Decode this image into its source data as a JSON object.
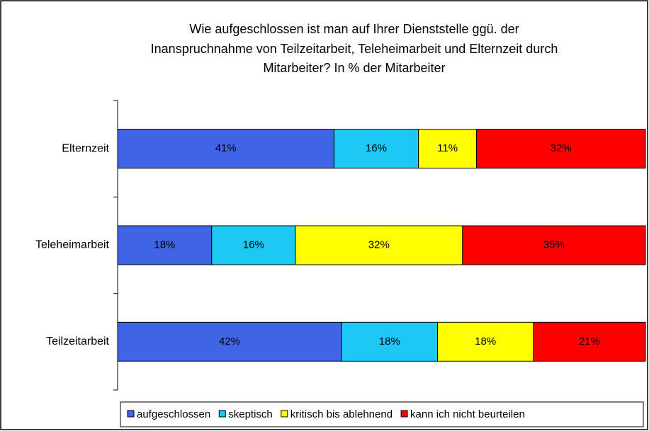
{
  "chart_data": {
    "type": "bar",
    "orientation": "horizontal",
    "stacked": "percent",
    "title": [
      "Wie aufgeschlossen ist man auf Ihrer Dienststelle ggü. der",
      "Inanspruchnahme von Teilzeitarbeit, Teleheimarbeit und Elternzeit durch",
      "Mitarbeiter? In % der Mitarbeiter"
    ],
    "categories": [
      "Elternzeit",
      "Teleheimarbeit",
      "Teilzeitarbeit"
    ],
    "series": [
      {
        "name": "aufgeschlossen",
        "color": "#3f64e6",
        "values": [
          41,
          18,
          42
        ],
        "value_labels": [
          "41%",
          "18%",
          "42%"
        ]
      },
      {
        "name": "skeptisch",
        "color": "#1ec8f5",
        "values": [
          16,
          16,
          18
        ],
        "value_labels": [
          "16%",
          "16%",
          "18%"
        ]
      },
      {
        "name": "kritisch bis ablehnend",
        "color": "#ffff00",
        "values": [
          11,
          32,
          18
        ],
        "value_labels": [
          "11%",
          "32%",
          "18%"
        ]
      },
      {
        "name": "kann ich nicht beurteilen",
        "color": "#ff0000",
        "values": [
          32,
          35,
          21
        ],
        "value_labels": [
          "32%",
          "35%",
          "21%"
        ]
      }
    ],
    "legend": "bottom"
  }
}
